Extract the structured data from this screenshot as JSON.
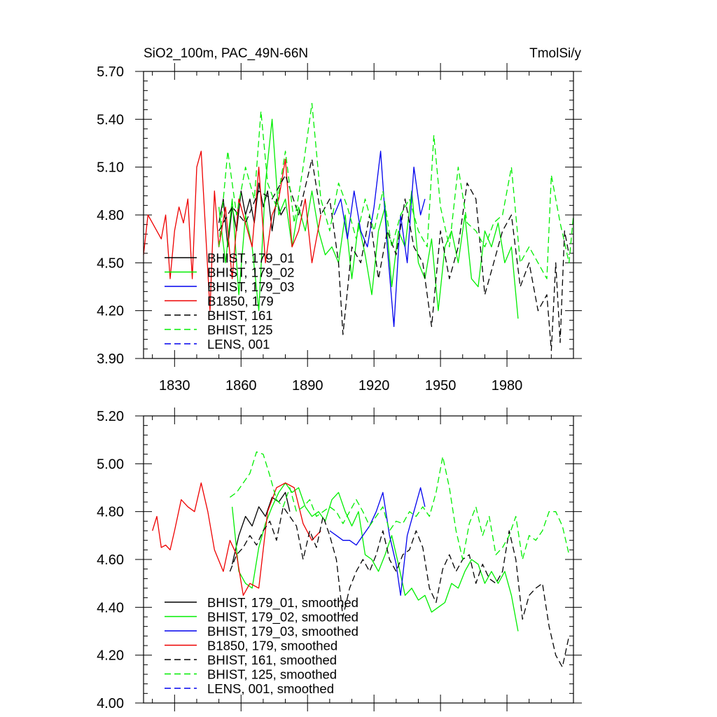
{
  "chart_data": [
    {
      "type": "line",
      "panel": "top",
      "title_left": "SiO2_100m, PAC_49N-66N",
      "title_right": "TmolSi/y",
      "xlabel": "",
      "ylabel": "",
      "xlim": [
        1816,
        2010
      ],
      "ylim": [
        3.9,
        5.7
      ],
      "yticks": [
        "3.90",
        "4.20",
        "4.50",
        "4.80",
        "5.10",
        "5.40",
        "5.70"
      ],
      "xticks": [
        "1830",
        "1860",
        "1890",
        "1920",
        "1950",
        "1980"
      ],
      "grid": false,
      "legend_position": "lower-left",
      "series": [
        {
          "name": "BHIST, 179_01",
          "color": "#000000",
          "dash": "solid",
          "x": [
            1850,
            1852,
            1854,
            1856,
            1858,
            1860,
            1862,
            1864,
            1866,
            1868,
            1870,
            1872,
            1874,
            1876,
            1878,
            1880
          ],
          "y": [
            4.75,
            4.9,
            4.6,
            4.85,
            4.7,
            4.95,
            4.8,
            4.9,
            4.75,
            5.0,
            4.85,
            4.95,
            4.7,
            4.9,
            4.8,
            4.85
          ]
        },
        {
          "name": "BHIST, 179_02",
          "color": "#00ee00",
          "dash": "solid",
          "x": [
            1850,
            1853,
            1856,
            1859,
            1862,
            1865,
            1868,
            1871,
            1874,
            1877,
            1880,
            1883,
            1886,
            1889,
            1892,
            1895,
            1898,
            1901,
            1904,
            1907,
            1910,
            1913,
            1916,
            1919,
            1922,
            1925,
            1928,
            1931,
            1934,
            1937,
            1940,
            1943,
            1946,
            1949,
            1952,
            1955,
            1958,
            1961,
            1964,
            1967,
            1970,
            1973,
            1976,
            1979,
            1982,
            1985
          ],
          "y": [
            4.85,
            4.5,
            4.9,
            4.3,
            4.8,
            4.6,
            4.2,
            5.0,
            5.4,
            4.8,
            4.9,
            4.6,
            4.85,
            4.7,
            4.95,
            4.7,
            4.55,
            4.6,
            4.5,
            4.8,
            4.4,
            4.75,
            4.55,
            4.3,
            4.7,
            4.85,
            4.35,
            4.7,
            4.6,
            4.95,
            4.5,
            4.4,
            4.65,
            4.2,
            4.6,
            4.7,
            4.5,
            4.8,
            4.4,
            4.35,
            4.7,
            4.6,
            4.75,
            4.5,
            4.6,
            4.15
          ]
        },
        {
          "name": "BHIST, 179_03",
          "color": "#0000ee",
          "dash": "solid",
          "x": [
            1902,
            1905,
            1908,
            1911,
            1914,
            1917,
            1920,
            1923,
            1926,
            1929,
            1932,
            1935,
            1938,
            1941,
            1943
          ],
          "y": [
            4.8,
            4.9,
            4.65,
            4.95,
            4.7,
            4.6,
            4.85,
            5.2,
            4.6,
            4.1,
            4.8,
            4.5,
            5.1,
            4.8,
            4.9
          ]
        },
        {
          "name": "B1850, 179",
          "color": "#ee0000",
          "dash": "solid",
          "x": [
            1816,
            1818,
            1820,
            1822,
            1824,
            1826,
            1828,
            1830,
            1832,
            1834,
            1836,
            1838,
            1840,
            1842,
            1844,
            1846,
            1848,
            1850,
            1853,
            1856,
            1859,
            1862,
            1865,
            1868,
            1871,
            1874,
            1877,
            1880,
            1883,
            1886,
            1889,
            1892,
            1896
          ],
          "y": [
            4.55,
            4.8,
            4.75,
            4.7,
            4.65,
            4.8,
            4.4,
            4.7,
            4.85,
            4.75,
            4.9,
            4.4,
            5.1,
            5.2,
            4.7,
            4.2,
            4.95,
            4.6,
            4.85,
            4.4,
            4.9,
            4.75,
            4.6,
            5.1,
            4.5,
            4.8,
            4.9,
            5.15,
            4.6,
            4.7,
            4.9,
            4.5,
            4.8
          ]
        },
        {
          "name": "BHIST, 161",
          "color": "#000000",
          "dash": "dashed",
          "x": [
            1850,
            1856,
            1862,
            1868,
            1874,
            1880,
            1886,
            1892,
            1896,
            1900,
            1904,
            1906,
            1910,
            1914,
            1918,
            1922,
            1926,
            1930,
            1934,
            1938,
            1942,
            1946,
            1950,
            1954,
            1958,
            1962,
            1966,
            1970,
            1974,
            1978,
            1982,
            1986,
            1990,
            1994,
            1998,
            2000,
            2002,
            2004,
            2006,
            2008
          ],
          "y": [
            4.7,
            4.85,
            4.75,
            4.95,
            4.9,
            5.05,
            4.8,
            5.15,
            4.8,
            4.9,
            4.5,
            4.05,
            4.6,
            4.5,
            4.8,
            4.4,
            4.7,
            4.55,
            4.9,
            4.6,
            4.5,
            4.1,
            4.7,
            4.4,
            4.6,
            5.0,
            4.9,
            4.3,
            4.5,
            4.7,
            4.8,
            4.35,
            4.5,
            4.2,
            4.3,
            3.95,
            4.5,
            4.0,
            4.7,
            4.55
          ]
        },
        {
          "name": "BHIST, 125",
          "color": "#00ee00",
          "dash": "dashed",
          "x": [
            1850,
            1854,
            1858,
            1862,
            1866,
            1869,
            1872,
            1876,
            1880,
            1884,
            1888,
            1892,
            1896,
            1900,
            1904,
            1908,
            1912,
            1916,
            1920,
            1924,
            1928,
            1932,
            1936,
            1940,
            1944,
            1947,
            1950,
            1954,
            1958,
            1962,
            1966,
            1970,
            1974,
            1978,
            1982,
            1986,
            1990,
            1994,
            1998,
            2000,
            2004,
            2008,
            2010
          ],
          "y": [
            4.6,
            5.2,
            4.8,
            5.1,
            4.9,
            5.45,
            5.0,
            4.85,
            5.2,
            4.75,
            5.1,
            5.5,
            4.9,
            4.7,
            5.0,
            4.85,
            4.65,
            4.9,
            4.7,
            4.95,
            4.6,
            4.8,
            4.9,
            4.7,
            4.6,
            5.3,
            4.85,
            4.6,
            5.1,
            4.75,
            4.7,
            4.6,
            4.75,
            4.8,
            5.1,
            4.5,
            4.6,
            4.5,
            4.4,
            5.05,
            4.75,
            4.5,
            4.8
          ]
        },
        {
          "name": "LENS, 001",
          "color": "#0000ee",
          "dash": "dashed",
          "x": [],
          "y": []
        }
      ]
    },
    {
      "type": "line",
      "panel": "bottom",
      "title_left": "",
      "title_right": "",
      "xlabel": "",
      "ylabel": "",
      "xlim": [
        1816,
        2010
      ],
      "ylim": [
        4.0,
        5.2
      ],
      "yticks": [
        "4.00",
        "4.20",
        "4.40",
        "4.60",
        "4.80",
        "5.00",
        "5.20"
      ],
      "xticks": [],
      "grid": false,
      "legend_position": "lower-left",
      "series": [
        {
          "name": "BHIST, 179_01, smoothed",
          "color": "#000000",
          "dash": "solid",
          "x": [
            1856,
            1859,
            1862,
            1865,
            1868,
            1871,
            1874,
            1877,
            1880,
            1882
          ],
          "y": [
            4.58,
            4.7,
            4.78,
            4.74,
            4.82,
            4.78,
            4.86,
            4.84,
            4.88,
            4.8
          ]
        },
        {
          "name": "BHIST, 179_02, smoothed",
          "color": "#00ee00",
          "dash": "solid",
          "x": [
            1856,
            1859,
            1862,
            1865,
            1868,
            1871,
            1874,
            1877,
            1880,
            1883,
            1886,
            1889,
            1892,
            1895,
            1898,
            1901,
            1904,
            1907,
            1910,
            1913,
            1916,
            1919,
            1922,
            1925,
            1928,
            1931,
            1934,
            1937,
            1940,
            1943,
            1946,
            1949,
            1952,
            1955,
            1958,
            1961,
            1964,
            1967,
            1970,
            1973,
            1976,
            1979,
            1982,
            1985
          ],
          "y": [
            4.82,
            4.55,
            4.5,
            4.48,
            4.65,
            4.75,
            4.82,
            4.88,
            4.92,
            4.88,
            4.9,
            4.82,
            4.78,
            4.8,
            4.76,
            4.85,
            4.88,
            4.8,
            4.74,
            4.8,
            4.62,
            4.6,
            4.55,
            4.62,
            4.7,
            4.58,
            4.45,
            4.48,
            4.43,
            4.45,
            4.38,
            4.4,
            4.42,
            4.5,
            4.48,
            4.55,
            4.6,
            4.58,
            4.5,
            4.55,
            4.5,
            4.55,
            4.45,
            4.3
          ]
        },
        {
          "name": "BHIST, 179_03, smoothed",
          "color": "#0000ee",
          "dash": "solid",
          "x": [
            1900,
            1903,
            1906,
            1909,
            1912,
            1915,
            1918,
            1921,
            1924,
            1927,
            1930,
            1932,
            1935,
            1938,
            1941,
            1943
          ],
          "y": [
            4.72,
            4.7,
            4.68,
            4.68,
            4.66,
            4.7,
            4.74,
            4.8,
            4.88,
            4.7,
            4.58,
            4.45,
            4.7,
            4.8,
            4.9,
            4.82
          ]
        },
        {
          "name": "B1850, 179, smoothed",
          "color": "#ee0000",
          "dash": "solid",
          "x": [
            1820,
            1822,
            1824,
            1826,
            1828,
            1830,
            1833,
            1836,
            1839,
            1842,
            1845,
            1848,
            1852,
            1855,
            1858,
            1861,
            1864,
            1868,
            1872,
            1876,
            1880,
            1884,
            1888,
            1892,
            1896
          ],
          "y": [
            4.72,
            4.78,
            4.65,
            4.66,
            4.64,
            4.72,
            4.85,
            4.82,
            4.8,
            4.92,
            4.8,
            4.64,
            4.55,
            4.68,
            4.62,
            4.45,
            4.5,
            4.48,
            4.8,
            4.9,
            4.92,
            4.9,
            4.75,
            4.68,
            4.72
          ]
        },
        {
          "name": "BHIST, 161, smoothed",
          "color": "#000000",
          "dash": "dashed",
          "x": [
            1855,
            1858,
            1861,
            1864,
            1867,
            1870,
            1873,
            1876,
            1879,
            1882,
            1885,
            1888,
            1891,
            1894,
            1897,
            1900,
            1903,
            1906,
            1909,
            1912,
            1915,
            1918,
            1921,
            1924,
            1927,
            1930,
            1933,
            1936,
            1939,
            1942,
            1945,
            1948,
            1951,
            1954,
            1957,
            1960,
            1963,
            1966,
            1969,
            1972,
            1975,
            1978,
            1981,
            1984,
            1987,
            1990,
            1993,
            1996,
            1999,
            2002,
            2005,
            2008
          ],
          "y": [
            4.55,
            4.62,
            4.65,
            4.7,
            4.66,
            4.72,
            4.76,
            4.68,
            4.82,
            4.78,
            4.74,
            4.6,
            4.72,
            4.65,
            4.78,
            4.7,
            4.6,
            4.36,
            4.48,
            4.55,
            4.6,
            4.55,
            4.62,
            4.72,
            4.6,
            4.55,
            4.62,
            4.64,
            4.72,
            4.65,
            4.48,
            4.42,
            4.56,
            4.62,
            4.55,
            4.6,
            4.62,
            4.5,
            4.58,
            4.52,
            4.5,
            4.55,
            4.72,
            4.6,
            4.35,
            4.45,
            4.48,
            4.5,
            4.32,
            4.2,
            4.15,
            4.28
          ]
        },
        {
          "name": "BHIST, 125, smoothed",
          "color": "#00ee00",
          "dash": "dashed",
          "x": [
            1855,
            1858,
            1861,
            1864,
            1867,
            1870,
            1873,
            1876,
            1879,
            1882,
            1885,
            1888,
            1891,
            1894,
            1897,
            1900,
            1903,
            1906,
            1909,
            1912,
            1915,
            1918,
            1921,
            1924,
            1927,
            1930,
            1933,
            1936,
            1939,
            1942,
            1945,
            1948,
            1951,
            1954,
            1957,
            1960,
            1963,
            1966,
            1969,
            1972,
            1975,
            1978,
            1981,
            1984,
            1987,
            1990,
            1993,
            1996,
            1999,
            2002,
            2005,
            2008
          ],
          "y": [
            4.86,
            4.88,
            4.92,
            4.96,
            5.05,
            5.04,
            4.95,
            4.85,
            4.82,
            4.9,
            4.8,
            4.82,
            4.85,
            4.78,
            4.8,
            4.82,
            4.8,
            4.75,
            4.8,
            4.85,
            4.8,
            4.74,
            4.78,
            4.82,
            4.72,
            4.76,
            4.75,
            4.8,
            4.78,
            4.82,
            4.78,
            4.88,
            5.03,
            4.9,
            4.72,
            4.6,
            4.75,
            4.82,
            4.7,
            4.78,
            4.62,
            4.65,
            4.7,
            4.78,
            4.6,
            4.7,
            4.68,
            4.72,
            4.8,
            4.8,
            4.74,
            4.62
          ]
        },
        {
          "name": "LENS, 001, smoothed",
          "color": "#0000ee",
          "dash": "dashed",
          "x": [],
          "y": []
        }
      ]
    }
  ]
}
